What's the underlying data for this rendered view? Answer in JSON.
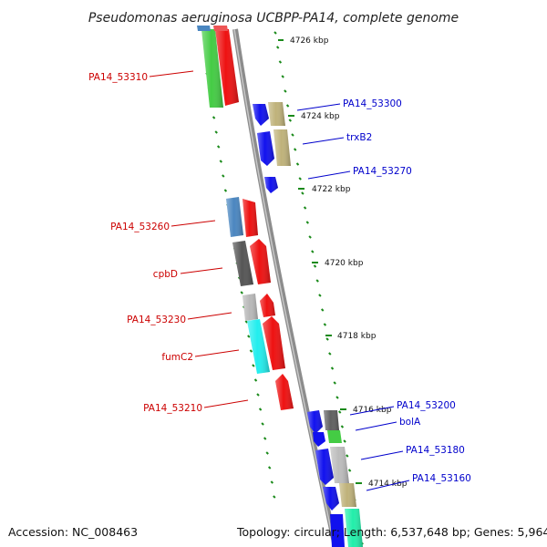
{
  "title": "Pseudomonas aeruginosa UCBPP-PA14, complete genome",
  "accession": "Accession: NC_008463",
  "topology": "Topology: circular; Length: 6,537,648 bp; Genes: 5,964",
  "colors": {
    "backbone": "#8c8c8c",
    "tick": "#1a8a1a",
    "minus_label": "#cc0000",
    "plus_label": "#0000cc"
  },
  "positions": [
    "4726 kbp",
    "4724 kbp",
    "4722 kbp",
    "4720 kbp",
    "4718 kbp",
    "4716 kbp",
    "4714 kbp"
  ],
  "minus_labels": [
    "PA14_53310",
    "PA14_53260",
    "cpbD",
    "PA14_53230",
    "fumC2",
    "PA14_53210"
  ],
  "plus_labels": [
    "PA14_53300",
    "trxB2",
    "PA14_53270",
    "PA14_53200",
    "bolA",
    "PA14_53180",
    "PA14_53160"
  ]
}
